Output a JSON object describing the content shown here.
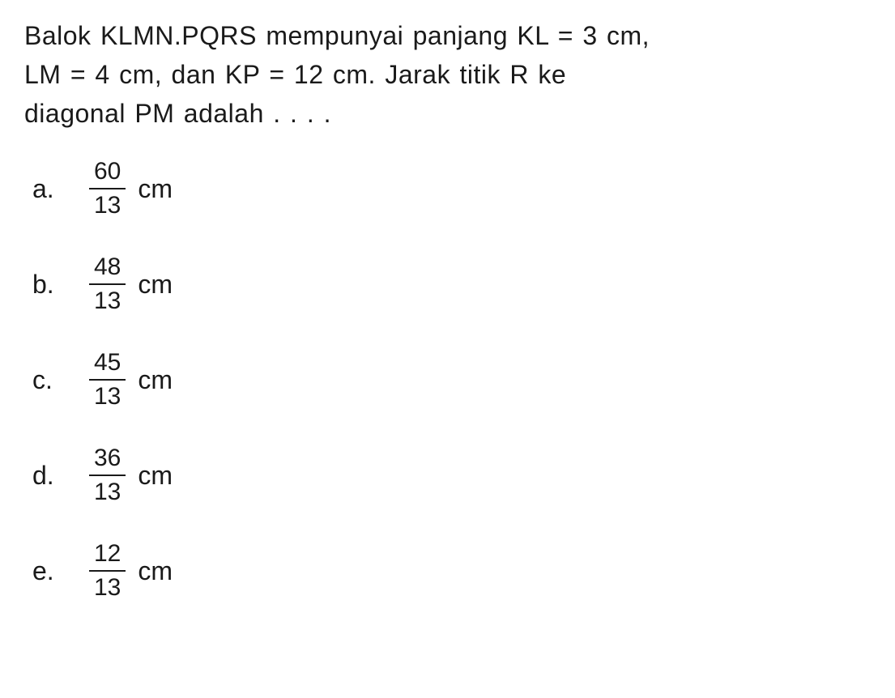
{
  "question": {
    "line1": "Balok KLMN.PQRS mempunyai panjang KL = 3 cm,",
    "line2": "LM = 4 cm, dan KP = 12 cm. Jarak titik R ke",
    "line3": "diagonal PM adalah . . . ."
  },
  "options": [
    {
      "label": "a.",
      "numerator": "60",
      "denominator": "13",
      "unit": "cm"
    },
    {
      "label": "b.",
      "numerator": "48",
      "denominator": "13",
      "unit": "cm"
    },
    {
      "label": "c.",
      "numerator": "45",
      "denominator": "13",
      "unit": "cm"
    },
    {
      "label": "d.",
      "numerator": "36",
      "denominator": "13",
      "unit": "cm"
    },
    {
      "label": "e.",
      "numerator": "12",
      "denominator": "13",
      "unit": "cm"
    }
  ],
  "style": {
    "text_color": "#1a1a1a",
    "background_color": "#ffffff",
    "question_fontsize": 32,
    "option_fontsize": 32,
    "fraction_fontsize": 30
  }
}
